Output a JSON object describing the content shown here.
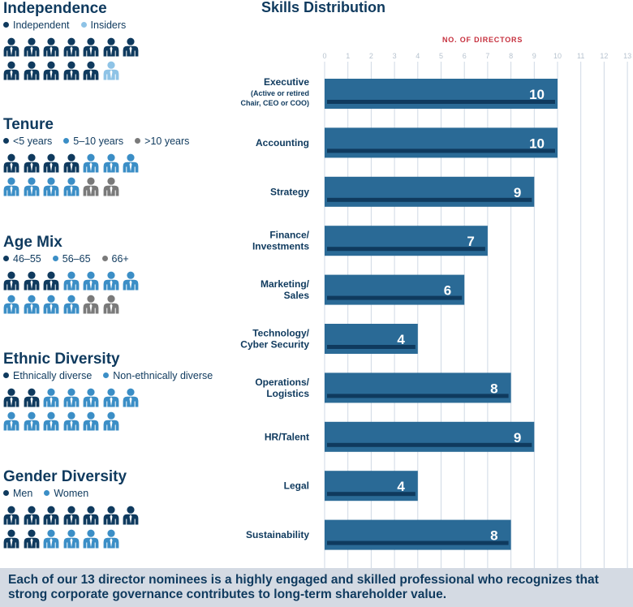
{
  "colors": {
    "dark": "#0f3a5e",
    "medium": "#3b8ec6",
    "gray": "#7a7a7a",
    "light": "#8ec3e6",
    "bar": "#2a6a96",
    "bar_inner": "#0f3a5e",
    "axis_label": "#c6303e",
    "grid": "#cfd9e4"
  },
  "panels": [
    {
      "id": "independence",
      "title": "Independence",
      "legend": [
        {
          "label": "Independent",
          "color": "#0f3a5e"
        },
        {
          "label": "Insiders",
          "color": "#8ec3e6"
        }
      ],
      "rows": [
        [
          "#0f3a5e",
          "#0f3a5e",
          "#0f3a5e",
          "#0f3a5e",
          "#0f3a5e",
          "#0f3a5e",
          "#0f3a5e"
        ],
        [
          "#0f3a5e",
          "#0f3a5e",
          "#0f3a5e",
          "#0f3a5e",
          "#0f3a5e",
          "#8ec3e6"
        ]
      ]
    },
    {
      "id": "tenure",
      "title": "Tenure",
      "legend": [
        {
          "label": "<5 years",
          "color": "#0f3a5e"
        },
        {
          "label": "5–10 years",
          "color": "#3b8ec6"
        },
        {
          "label": ">10 years",
          "color": "#7a7a7a"
        }
      ],
      "rows": [
        [
          "#0f3a5e",
          "#0f3a5e",
          "#0f3a5e",
          "#0f3a5e",
          "#3b8ec6",
          "#3b8ec6",
          "#3b8ec6"
        ],
        [
          "#3b8ec6",
          "#3b8ec6",
          "#3b8ec6",
          "#3b8ec6",
          "#7a7a7a",
          "#7a7a7a"
        ]
      ]
    },
    {
      "id": "age-mix",
      "title": "Age Mix",
      "legend": [
        {
          "label": "46–55",
          "color": "#0f3a5e"
        },
        {
          "label": "56–65",
          "color": "#3b8ec6"
        },
        {
          "label": "66+",
          "color": "#7a7a7a"
        }
      ],
      "rows": [
        [
          "#0f3a5e",
          "#0f3a5e",
          "#0f3a5e",
          "#3b8ec6",
          "#3b8ec6",
          "#3b8ec6",
          "#3b8ec6"
        ],
        [
          "#3b8ec6",
          "#3b8ec6",
          "#3b8ec6",
          "#3b8ec6",
          "#7a7a7a",
          "#7a7a7a"
        ]
      ]
    },
    {
      "id": "ethnic-diversity",
      "title": "Ethnic Diversity",
      "legend": [
        {
          "label": "Ethnically diverse",
          "color": "#0f3a5e"
        },
        {
          "label": "Non-ethnically diverse",
          "color": "#3b8ec6"
        }
      ],
      "rows": [
        [
          "#0f3a5e",
          "#0f3a5e",
          "#3b8ec6",
          "#3b8ec6",
          "#3b8ec6",
          "#3b8ec6",
          "#3b8ec6"
        ],
        [
          "#3b8ec6",
          "#3b8ec6",
          "#3b8ec6",
          "#3b8ec6",
          "#3b8ec6",
          "#3b8ec6"
        ]
      ]
    },
    {
      "id": "gender-diversity",
      "title": "Gender Diversity",
      "legend": [
        {
          "label": "Men",
          "color": "#0f3a5e"
        },
        {
          "label": "Women",
          "color": "#3b8ec6"
        }
      ],
      "rows": [
        [
          "#0f3a5e",
          "#0f3a5e",
          "#0f3a5e",
          "#0f3a5e",
          "#0f3a5e",
          "#0f3a5e",
          "#0f3a5e"
        ],
        [
          "#0f3a5e",
          "#0f3a5e",
          "#3b8ec6",
          "#3b8ec6",
          "#3b8ec6",
          "#3b8ec6"
        ]
      ]
    }
  ],
  "chart_data": {
    "type": "bar",
    "orientation": "horizontal",
    "title": "Skills Distribution",
    "axis_label": "NO. OF DIRECTORS",
    "xlim": [
      0,
      13
    ],
    "ticks": [
      "0",
      "1",
      "2",
      "3",
      "4",
      "5",
      "6",
      "7",
      "8",
      "9",
      "10",
      "11",
      "12",
      "13"
    ],
    "grid": true,
    "categories": [
      {
        "lines": [
          "Executive"
        ],
        "sublines": [
          "(Active or retired",
          "Chair, CEO or COO)"
        ],
        "value": 10,
        "value_label": "10"
      },
      {
        "lines": [
          "Accounting"
        ],
        "sublines": [],
        "value": 10,
        "value_label": "10"
      },
      {
        "lines": [
          "Strategy"
        ],
        "sublines": [],
        "value": 9,
        "value_label": "9"
      },
      {
        "lines": [
          "Finance/",
          "Investments"
        ],
        "sublines": [],
        "value": 7,
        "value_label": "7"
      },
      {
        "lines": [
          "Marketing/",
          "Sales"
        ],
        "sublines": [],
        "value": 6,
        "value_label": "6"
      },
      {
        "lines": [
          "Technology/",
          "Cyber Security"
        ],
        "sublines": [],
        "value": 4,
        "value_label": "4"
      },
      {
        "lines": [
          "Operations/",
          "Logistics"
        ],
        "sublines": [],
        "value": 8,
        "value_label": "8"
      },
      {
        "lines": [
          "HR/Talent"
        ],
        "sublines": [],
        "value": 9,
        "value_label": "9"
      },
      {
        "lines": [
          "Legal"
        ],
        "sublines": [],
        "value": 4,
        "value_label": "4"
      },
      {
        "lines": [
          "Sustainability"
        ],
        "sublines": [],
        "value": 8,
        "value_label": "8"
      }
    ]
  },
  "footer": {
    "text": "Each of our 13 director nominees is a highly engaged and skilled professional who recognizes that strong corporate governance contributes to long-term shareholder value."
  }
}
